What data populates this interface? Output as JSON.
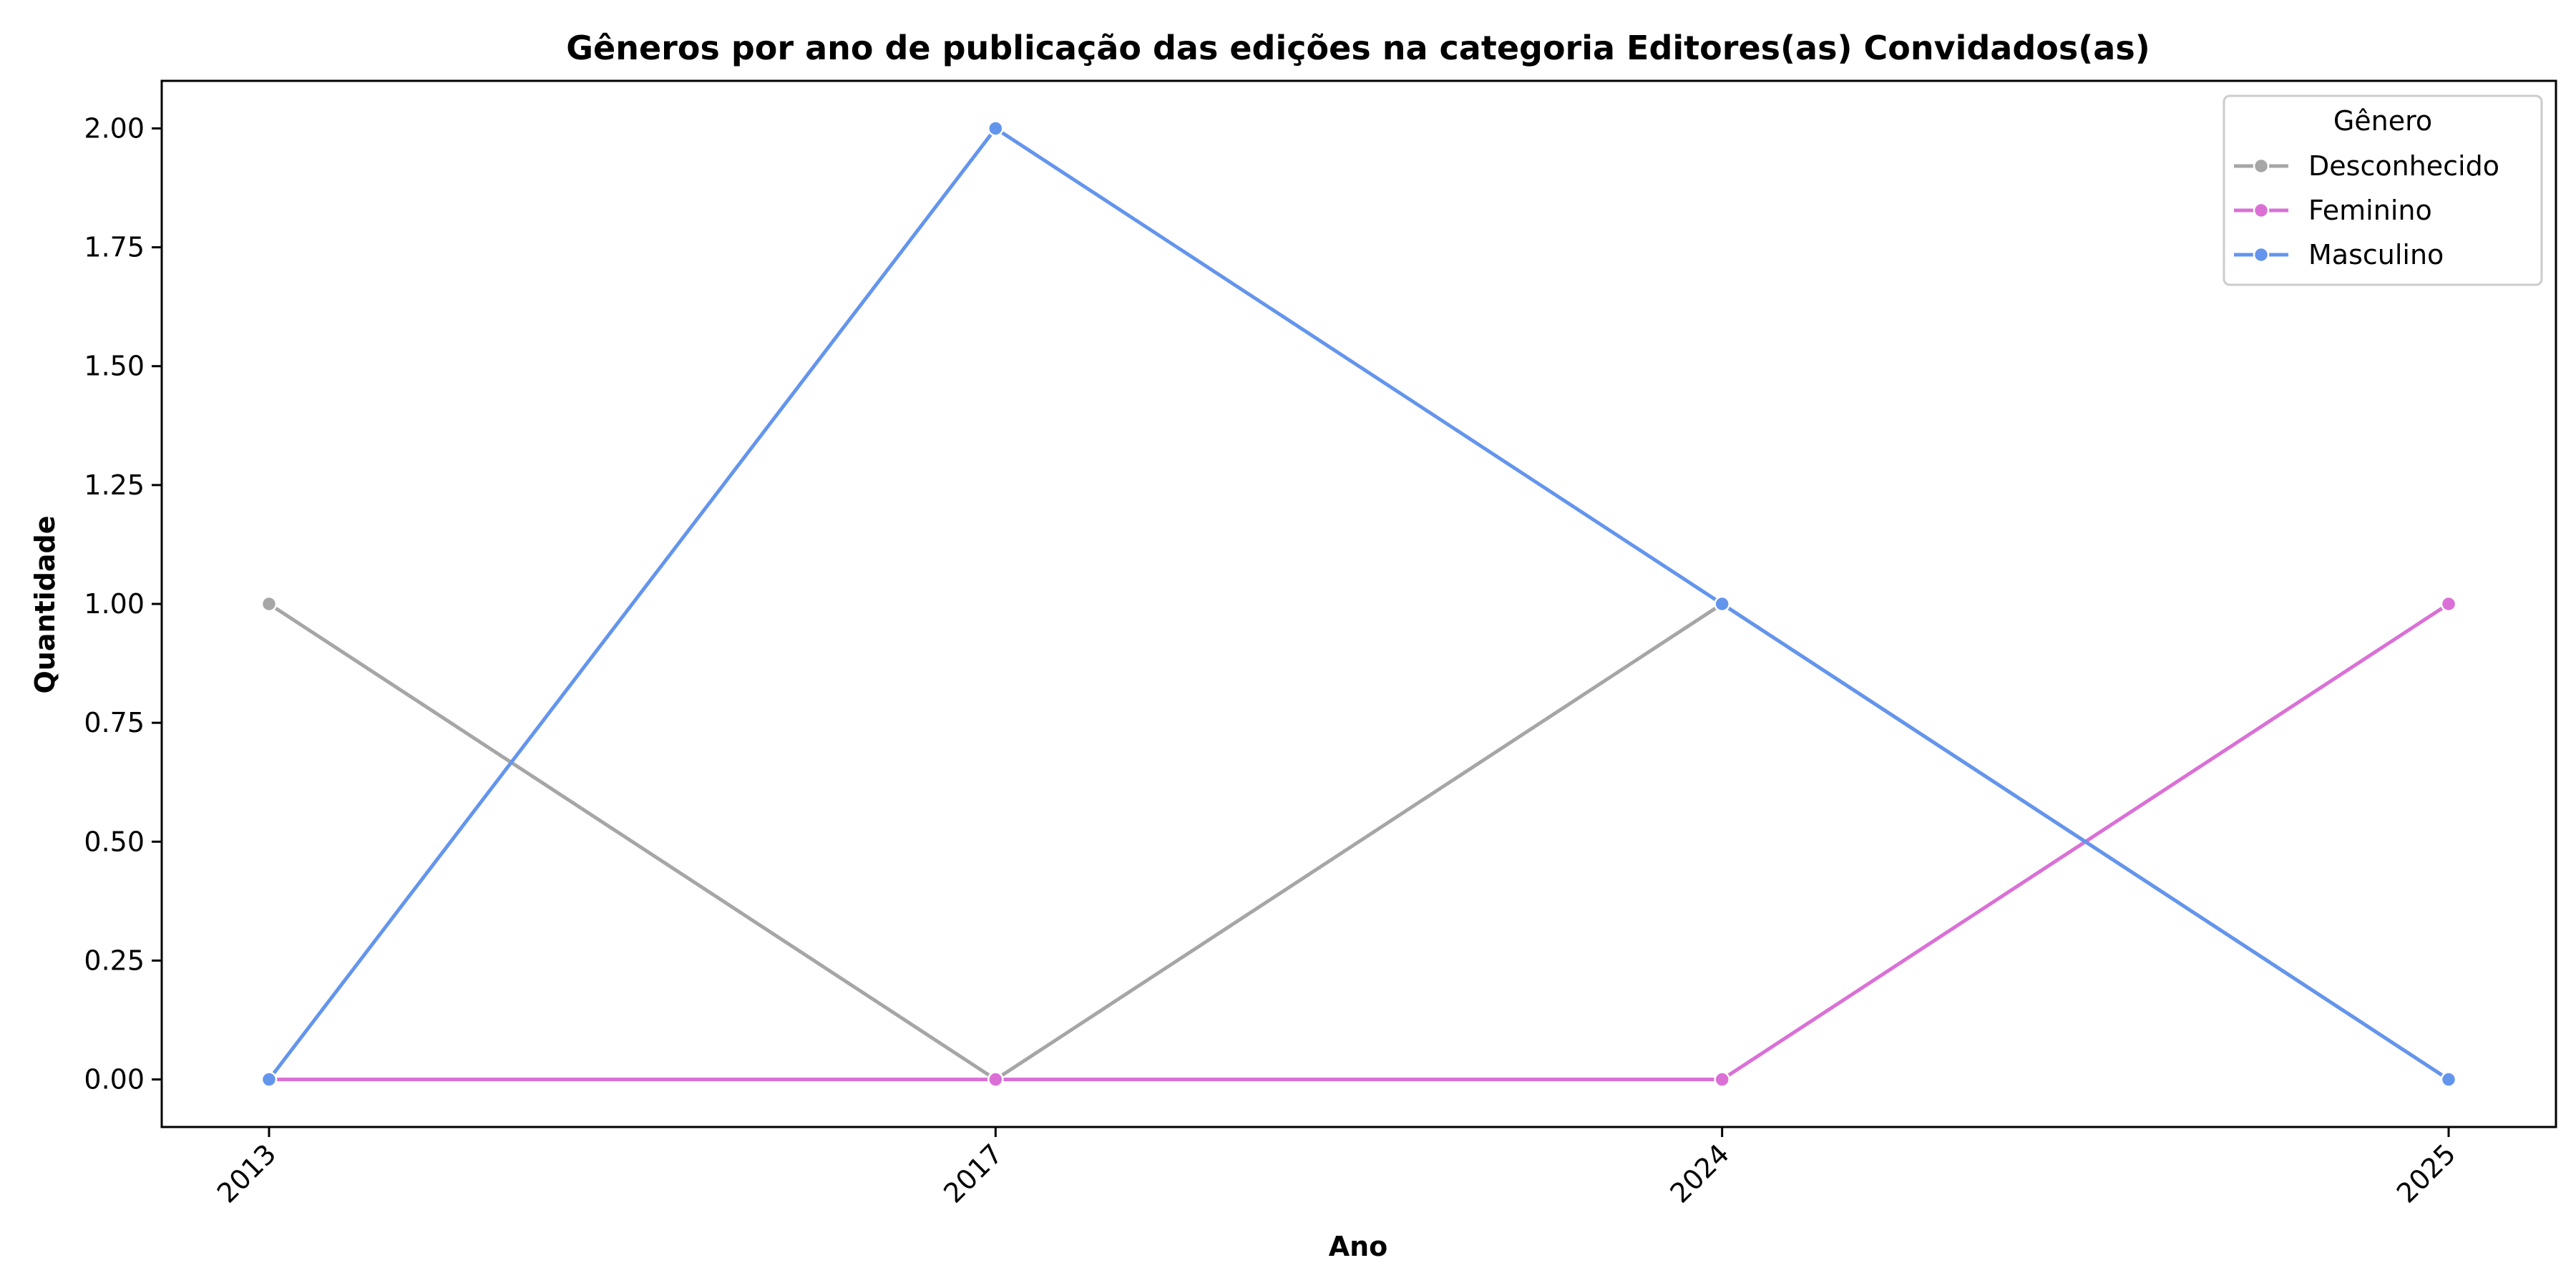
{
  "chart_data": {
    "type": "line",
    "title": "Gêneros por ano de publicação das edições na categoria Editores(as) Convidados(as)",
    "xlabel": "Ano",
    "ylabel": "Quantidade",
    "categories": [
      "2013",
      "2017",
      "2024",
      "2025"
    ],
    "yticks": [
      "0.00",
      "0.25",
      "0.50",
      "0.75",
      "1.00",
      "1.25",
      "1.50",
      "1.75",
      "2.00"
    ],
    "ylim": [
      -0.1,
      2.1
    ],
    "grid": false,
    "legend": {
      "title": "Gênero",
      "placement": "top-right"
    },
    "series": [
      {
        "name": "Desconhecido",
        "color": "#a6a6a6",
        "values": [
          1,
          0,
          1,
          0
        ]
      },
      {
        "name": "Feminino",
        "color": "#da70d6",
        "values": [
          0,
          0,
          0,
          1
        ]
      },
      {
        "name": "Masculino",
        "color": "#6495ed",
        "values": [
          0,
          2,
          1,
          0
        ]
      }
    ]
  }
}
